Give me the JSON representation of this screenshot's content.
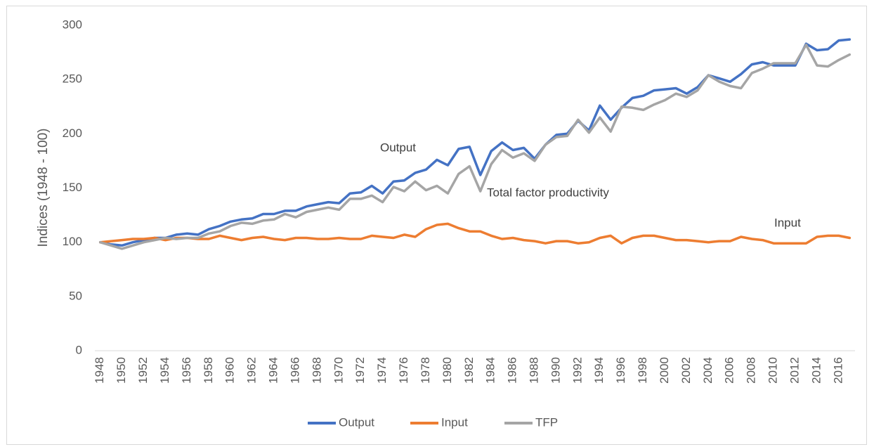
{
  "chart_data": {
    "type": "line",
    "y_label": "Indices (1948 - 100)",
    "categories": [
      "1948",
      null,
      "1950",
      null,
      "1952",
      null,
      "1954",
      null,
      "1956",
      null,
      "1958",
      null,
      "1960",
      null,
      "1962",
      null,
      "1964",
      null,
      "1966",
      null,
      "1968",
      null,
      "1970",
      null,
      "1972",
      null,
      "1974",
      null,
      "1976",
      null,
      "1978",
      null,
      "1980",
      null,
      "1982",
      null,
      "1984",
      null,
      "1986",
      null,
      "1988",
      null,
      "1990",
      null,
      "1992",
      null,
      "1994",
      null,
      "1996",
      null,
      "1998",
      null,
      "2000",
      null,
      "2002",
      null,
      "2004",
      null,
      "2006",
      null,
      "2008",
      null,
      "2010",
      null,
      "2012",
      null,
      "2014",
      null,
      "2016",
      null
    ],
    "series": [
      {
        "name": "Output",
        "color": "#4472c4",
        "values": [
          100,
          98,
          97,
          100,
          102,
          104,
          104,
          107,
          108,
          107,
          112,
          115,
          119,
          121,
          122,
          126,
          126,
          129,
          129,
          133,
          135,
          137,
          136,
          145,
          146,
          152,
          145,
          156,
          157,
          164,
          167,
          176,
          171,
          186,
          188,
          162,
          184,
          192,
          185,
          187,
          177,
          190,
          199,
          200,
          212,
          203,
          226,
          213,
          224,
          233,
          235,
          240,
          241,
          242,
          237,
          243,
          254,
          251,
          248,
          255,
          264,
          266,
          263,
          263,
          263,
          283,
          277,
          278,
          286,
          287
        ]
      },
      {
        "name": "Input",
        "color": "#ed7d31",
        "values": [
          100,
          101,
          102,
          103,
          103,
          104,
          102,
          104,
          104,
          103,
          103,
          106,
          104,
          102,
          104,
          105,
          103,
          102,
          104,
          104,
          103,
          103,
          104,
          103,
          103,
          106,
          105,
          104,
          107,
          105,
          112,
          116,
          117,
          113,
          110,
          110,
          106,
          103,
          104,
          102,
          101,
          99,
          101,
          101,
          99,
          100,
          104,
          106,
          99,
          104,
          106,
          106,
          104,
          102,
          102,
          101,
          100,
          101,
          101,
          105,
          103,
          102,
          99,
          99,
          99,
          99,
          105,
          106,
          106,
          104
        ]
      },
      {
        "name": "TFP",
        "color": "#a5a5a5",
        "values": [
          100,
          97,
          94,
          97,
          100,
          102,
          104,
          103,
          104,
          104,
          108,
          110,
          115,
          118,
          117,
          120,
          121,
          126,
          123,
          128,
          130,
          132,
          130,
          140,
          140,
          143,
          137,
          151,
          147,
          156,
          148,
          152,
          145,
          163,
          170,
          147,
          172,
          185,
          178,
          182,
          175,
          190,
          197,
          198,
          213,
          201,
          215,
          202,
          225,
          224,
          222,
          227,
          231,
          237,
          234,
          240,
          254,
          248,
          244,
          242,
          256,
          260,
          265,
          265,
          265,
          282,
          263,
          262,
          268,
          273
        ]
      }
    ],
    "annotations": [
      "Output",
      "Total factor productivity",
      "Input"
    ],
    "ylim": [
      0,
      300
    ],
    "yticks": [
      0,
      50,
      100,
      150,
      200,
      250,
      300
    ],
    "legend": "bottom"
  }
}
